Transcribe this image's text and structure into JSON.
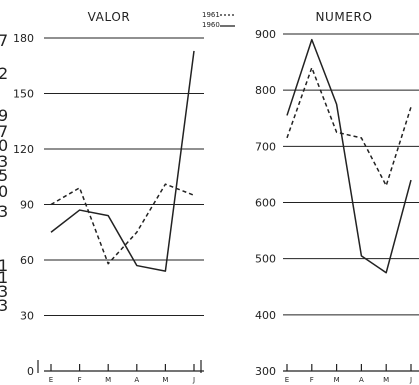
{
  "legend": {
    "series_1961": "1961",
    "series_1960": "1960"
  },
  "left_margin_glyphs": [
    "7",
    "2",
    "9",
    "7",
    "0",
    "3",
    "5",
    "0",
    "3",
    "1",
    "1",
    "3",
    "3"
  ],
  "colors": {
    "ink": "#222222",
    "paper": "#ffffff"
  },
  "chart_data": [
    {
      "type": "line",
      "title": "VALOR",
      "xlabel": "",
      "ylabel": "",
      "categories": [
        "E",
        "F",
        "M",
        "A",
        "M",
        "J"
      ],
      "ylim": [
        0,
        180
      ],
      "y_ticks": [
        0,
        30,
        60,
        90,
        120,
        150,
        180
      ],
      "grid": true,
      "legend_position": "top-right",
      "series": [
        {
          "name": "1961",
          "style": "dashed",
          "values": [
            90,
            99,
            58,
            75,
            101,
            95
          ]
        },
        {
          "name": "1960",
          "style": "solid",
          "values": [
            75,
            87,
            84,
            57,
            54,
            173
          ]
        }
      ]
    },
    {
      "type": "line",
      "title": "NUMERO",
      "xlabel": "",
      "ylabel": "",
      "categories": [
        "E",
        "F",
        "M",
        "A",
        "M",
        "J"
      ],
      "ylim": [
        300,
        900
      ],
      "y_ticks": [
        300,
        400,
        500,
        600,
        700,
        800,
        900
      ],
      "grid": true,
      "legend_position": "top-left",
      "series": [
        {
          "name": "1961",
          "style": "dashed",
          "values": [
            715,
            840,
            725,
            715,
            630,
            770
          ]
        },
        {
          "name": "1960",
          "style": "solid",
          "values": [
            755,
            890,
            775,
            505,
            475,
            640
          ]
        }
      ]
    }
  ]
}
